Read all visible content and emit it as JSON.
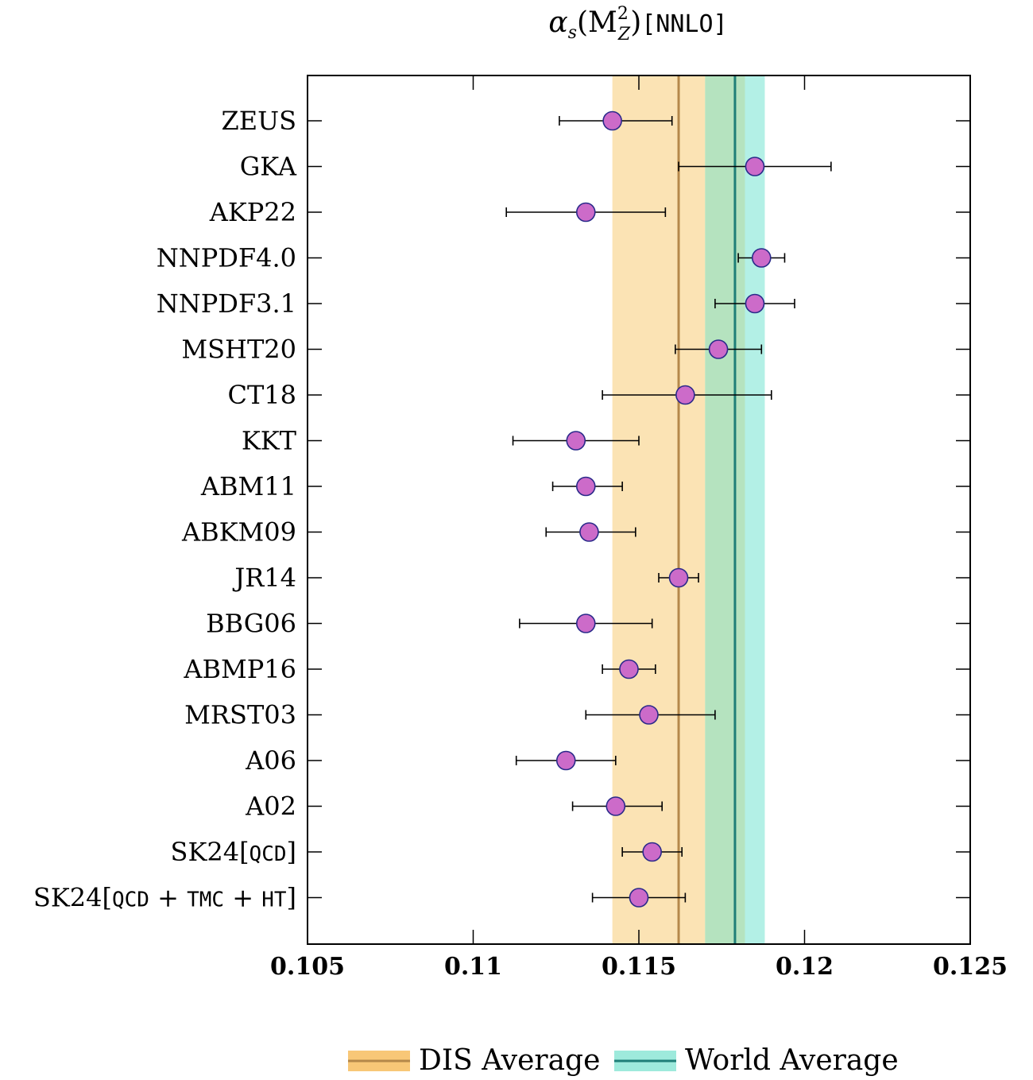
{
  "chart_data": {
    "type": "scatter",
    "title_parts": {
      "symbol": "α",
      "sub": "s",
      "open": "(M",
      "sup": "2",
      "sub2": "Z",
      "close": ")",
      "bracket": "[NNLO]"
    },
    "xlim": [
      0.105,
      0.125
    ],
    "xticks": [
      0.105,
      0.11,
      0.115,
      0.12,
      0.125
    ],
    "xtick_labels": [
      "0.105",
      "0.11",
      "0.115",
      "0.12",
      "0.125"
    ],
    "grid": false,
    "legend_position": "bottom-center",
    "bands": [
      {
        "name": "DIS Average",
        "center": 0.1162,
        "low": 0.1142,
        "high": 0.117,
        "band_color": "#fbe3b4",
        "legend_color": "#f8c777",
        "line_color": "#b5884a"
      },
      {
        "name": "World Average",
        "center": 0.1179,
        "low": 0.117,
        "high": 0.1188,
        "band_color": "#b3f0e6",
        "legend_color": "#9eeadc",
        "line_color": "#1f7f78"
      }
    ],
    "overlap_color": "#b5e3bf",
    "marker_color": "#cc6bc9",
    "marker_edge": "#2a2a8a",
    "series": [
      {
        "label": "ZEUS",
        "value": 0.1142,
        "err_low": 0.1126,
        "err_high": 0.116
      },
      {
        "label": "GKA",
        "value": 0.1185,
        "err_low": 0.1162,
        "err_high": 0.1208
      },
      {
        "label": "AKP22",
        "value": 0.1134,
        "err_low": 0.111,
        "err_high": 0.1158
      },
      {
        "label": "NNPDF4.0",
        "value": 0.1187,
        "err_low": 0.118,
        "err_high": 0.1194
      },
      {
        "label": "NNPDF3.1",
        "value": 0.1185,
        "err_low": 0.1173,
        "err_high": 0.1197
      },
      {
        "label": "MSHT20",
        "value": 0.1174,
        "err_low": 0.1161,
        "err_high": 0.1187
      },
      {
        "label": "CT18",
        "value": 0.1164,
        "err_low": 0.1139,
        "err_high": 0.119
      },
      {
        "label": "KKT",
        "value": 0.1131,
        "err_low": 0.1112,
        "err_high": 0.115
      },
      {
        "label": "ABM11",
        "value": 0.1134,
        "err_low": 0.1124,
        "err_high": 0.1145
      },
      {
        "label": "ABKM09",
        "value": 0.1135,
        "err_low": 0.1122,
        "err_high": 0.1149
      },
      {
        "label": "JR14",
        "value": 0.1162,
        "err_low": 0.1156,
        "err_high": 0.1168
      },
      {
        "label": "BBG06",
        "value": 0.1134,
        "err_low": 0.1114,
        "err_high": 0.1154
      },
      {
        "label": "ABMP16",
        "value": 0.1147,
        "err_low": 0.1139,
        "err_high": 0.1155
      },
      {
        "label": "MRST03",
        "value": 0.1153,
        "err_low": 0.1134,
        "err_high": 0.1173
      },
      {
        "label": "A06",
        "value": 0.1128,
        "err_low": 0.1113,
        "err_high": 0.1143
      },
      {
        "label": "A02",
        "value": 0.1143,
        "err_low": 0.113,
        "err_high": 0.1157
      },
      {
        "label_parts": [
          "SK24[",
          "QCD",
          "]"
        ],
        "value": 0.1154,
        "err_low": 0.1145,
        "err_high": 0.1163
      },
      {
        "label_parts": [
          "SK24[",
          "QCD",
          " + ",
          "TMC",
          " + ",
          "HT",
          "]"
        ],
        "value": 0.115,
        "err_low": 0.1136,
        "err_high": 0.1164
      }
    ]
  }
}
